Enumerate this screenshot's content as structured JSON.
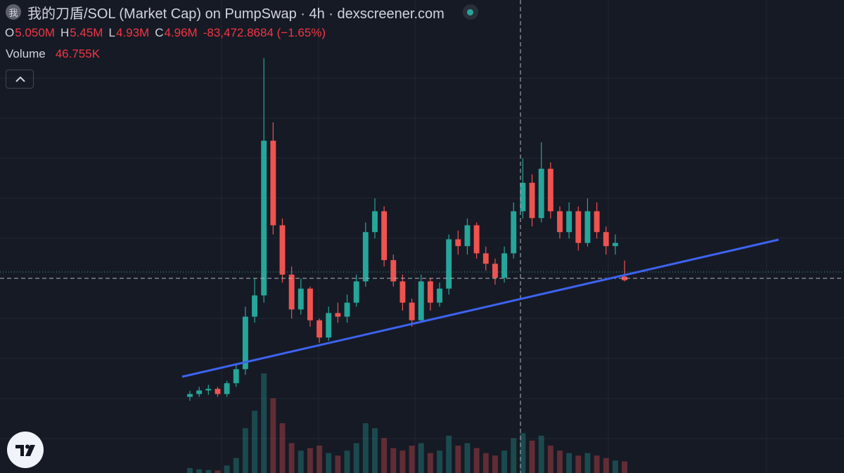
{
  "header": {
    "avatar": "我",
    "title": "我的刀盾/SOL (Market Cap) on PumpSwap · 4h · dexscreener.com",
    "open_label": "O",
    "open": "5.050M",
    "high_label": "H",
    "high": "5.45M",
    "low_label": "L",
    "low": "4.93M",
    "close_label": "C",
    "close": "4.96M",
    "change": "-83,472.8684 (−1.65%)",
    "volume_label": "Volume",
    "volume": "46.755K"
  },
  "chart_data": {
    "type": "candlestick",
    "up_color": "#26a69a",
    "down_color": "#ef5350",
    "ylim": [
      0.15,
      11.95
    ],
    "y2lim": [
      0,
      1900
    ],
    "open": [
      2.05,
      2.12,
      2.21,
      2.25,
      2.12,
      2.39,
      2.74,
      4.05,
      4.58,
      8.44,
      6.33,
      5.1,
      4.23,
      4.75,
      3.96,
      3.53,
      4.14,
      4.05,
      4.4,
      4.93,
      6.16,
      6.68,
      5.46,
      4.93,
      4.4,
      3.96,
      4.93,
      4.4,
      4.75,
      5.98,
      5.81,
      6.33,
      5.63,
      5.37,
      5.02,
      5.63,
      6.68,
      7.39,
      6.51,
      7.74,
      6.68,
      6.16,
      6.68,
      5.89,
      6.68,
      6.16,
      5.81,
      5.05
    ],
    "high": [
      2.2,
      2.3,
      2.35,
      2.3,
      2.45,
      2.85,
      4.3,
      5.0,
      10.5,
      8.9,
      6.5,
      5.3,
      5.0,
      4.8,
      4.0,
      4.3,
      4.4,
      4.6,
      5.1,
      6.4,
      7.0,
      6.8,
      5.6,
      5.1,
      4.5,
      5.1,
      5.0,
      4.9,
      6.1,
      6.2,
      6.5,
      6.4,
      5.8,
      5.5,
      5.8,
      6.9,
      8.0,
      7.6,
      8.4,
      7.9,
      6.8,
      6.9,
      6.8,
      7.0,
      6.9,
      6.3,
      6.1,
      5.45
    ],
    "low": [
      1.95,
      2.05,
      2.1,
      2.05,
      2.05,
      2.3,
      2.6,
      3.9,
      4.4,
      6.1,
      4.9,
      4.0,
      4.1,
      3.8,
      3.4,
      3.45,
      3.9,
      3.9,
      4.3,
      4.8,
      6.0,
      5.3,
      4.8,
      4.2,
      3.8,
      3.9,
      4.2,
      4.3,
      4.6,
      5.6,
      5.6,
      5.5,
      5.2,
      4.85,
      4.9,
      5.5,
      6.5,
      6.3,
      6.4,
      6.5,
      6.0,
      6.0,
      5.7,
      5.8,
      6.0,
      5.6,
      5.6,
      4.93
    ],
    "close": [
      2.12,
      2.21,
      2.25,
      2.12,
      2.39,
      2.74,
      4.05,
      4.58,
      8.44,
      6.33,
      5.1,
      4.23,
      4.75,
      3.96,
      3.53,
      4.14,
      4.05,
      4.4,
      4.93,
      6.16,
      6.68,
      5.46,
      4.93,
      4.4,
      3.96,
      4.93,
      4.4,
      4.75,
      5.98,
      5.81,
      6.33,
      5.63,
      5.37,
      5.02,
      5.63,
      6.68,
      7.39,
      6.51,
      7.74,
      6.68,
      6.16,
      6.68,
      5.89,
      6.68,
      6.16,
      5.81,
      5.89,
      4.96
    ],
    "volume": [
      20,
      15,
      12,
      10,
      30,
      60,
      180,
      250,
      400,
      300,
      200,
      120,
      90,
      100,
      110,
      80,
      70,
      90,
      120,
      200,
      180,
      140,
      100,
      90,
      110,
      120,
      80,
      90,
      150,
      110,
      120,
      100,
      80,
      70,
      90,
      140,
      160,
      130,
      150,
      110,
      90,
      80,
      70,
      80,
      70,
      60,
      50,
      46.755
    ]
  }
}
